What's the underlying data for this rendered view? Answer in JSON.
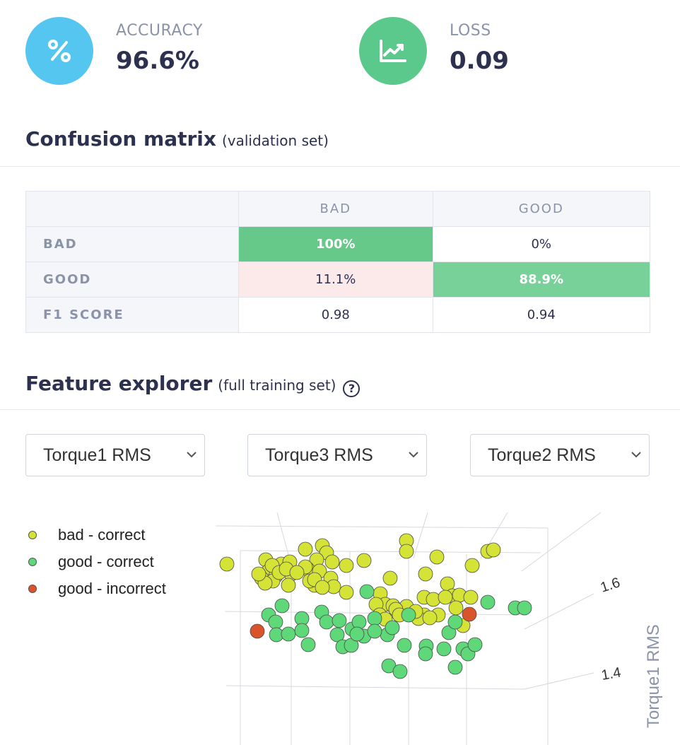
{
  "metrics": {
    "accuracy": {
      "label": "ACCURACY",
      "value": "96.6%",
      "icon": "percent-icon",
      "color": "#55c6ef"
    },
    "loss": {
      "label": "LOSS",
      "value": "0.09",
      "icon": "trend-chart-icon",
      "color": "#5cc98c"
    }
  },
  "confusion": {
    "title": "Confusion matrix",
    "subtitle": "(validation set)",
    "columns": [
      "BAD",
      "GOOD"
    ],
    "rows": [
      {
        "label": "BAD",
        "cells": [
          "100%",
          "0%"
        ]
      },
      {
        "label": "GOOD",
        "cells": [
          "11.1%",
          "88.9%"
        ]
      },
      {
        "label": "F1 SCORE",
        "cells": [
          "0.98",
          "0.94"
        ]
      }
    ],
    "colors": {
      "correct": "#66c98a",
      "correct_light": "#79d19a",
      "error": "#fceaea"
    }
  },
  "explorer": {
    "title": "Feature explorer",
    "subtitle": "(full training set)",
    "help_icon": "question-circle-icon",
    "selects": [
      "Torque1 RMS",
      "Torque3 RMS",
      "Torque2 RMS"
    ],
    "legend": [
      {
        "label": "bad - correct",
        "color": "#d5e236"
      },
      {
        "label": "good - correct",
        "color": "#5fd87a"
      },
      {
        "label": "good - incorrect",
        "color": "#d9542a"
      }
    ]
  },
  "chart_data": {
    "type": "scatter",
    "projection": "3d",
    "zlabel": "Torque1 RMS",
    "z_ticks": [
      "1.6",
      "1.4"
    ],
    "series": [
      {
        "name": "bad - correct",
        "color": "#d5e236",
        "points": [
          [
            321,
            798
          ],
          [
            376,
            792
          ],
          [
            380,
            808
          ],
          [
            370,
            818
          ],
          [
            390,
            815
          ],
          [
            398,
            798
          ],
          [
            410,
            795
          ],
          [
            412,
            812
          ],
          [
            432,
            777
          ],
          [
            456,
            772
          ],
          [
            462,
            782
          ],
          [
            448,
            792
          ],
          [
            435,
            805
          ],
          [
            452,
            808
          ],
          [
            470,
            795
          ],
          [
            490,
            800
          ],
          [
            515,
            793
          ],
          [
            575,
            765
          ],
          [
            575,
            780
          ],
          [
            618,
            788
          ],
          [
            602,
            812
          ],
          [
            600,
            845
          ],
          [
            613,
            848
          ],
          [
            633,
            826
          ],
          [
            640,
            843
          ],
          [
            650,
            842
          ],
          [
            668,
            800
          ],
          [
            690,
            780
          ],
          [
            698,
            778
          ],
          [
            552,
            818
          ],
          [
            538,
            840
          ],
          [
            545,
            855
          ],
          [
            556,
            857
          ],
          [
            575,
            858
          ],
          [
            560,
            862
          ],
          [
            600,
            870
          ],
          [
            592,
            875
          ],
          [
            565,
            870
          ],
          [
            588,
            865
          ],
          [
            532,
            855
          ],
          [
            537,
            870
          ],
          [
            545,
            876
          ],
          [
            468,
            818
          ],
          [
            472,
            830
          ],
          [
            445,
            828
          ],
          [
            438,
            822
          ],
          [
            432,
            802
          ],
          [
            408,
            828
          ],
          [
            386,
            822
          ],
          [
            375,
            825
          ],
          [
            366,
            812
          ],
          [
            385,
            800
          ],
          [
            395,
            810
          ],
          [
            405,
            805
          ],
          [
            420,
            810
          ],
          [
            445,
            820
          ],
          [
            456,
            831
          ],
          [
            490,
            838
          ],
          [
            655,
            885
          ],
          [
            645,
            860
          ],
          [
            666,
            845
          ],
          [
            630,
            845
          ],
          [
            620,
            870
          ],
          [
            608,
            874
          ]
        ]
      },
      {
        "name": "good - correct",
        "color": "#5fd87a",
        "points": [
          [
            399,
            857
          ],
          [
            380,
            870
          ],
          [
            390,
            880
          ],
          [
            391,
            898
          ],
          [
            408,
            897
          ],
          [
            427,
            875
          ],
          [
            427,
            892
          ],
          [
            436,
            912
          ],
          [
            455,
            866
          ],
          [
            462,
            880
          ],
          [
            480,
            878
          ],
          [
            477,
            898
          ],
          [
            485,
            915
          ],
          [
            497,
            913
          ],
          [
            498,
            890
          ],
          [
            508,
            880
          ],
          [
            515,
            900
          ],
          [
            505,
            897
          ],
          [
            519,
            837
          ],
          [
            530,
            875
          ],
          [
            548,
            898
          ],
          [
            530,
            893
          ],
          [
            555,
            888
          ],
          [
            572,
            913
          ],
          [
            578,
            870
          ],
          [
            603,
            914
          ],
          [
            602,
            925
          ],
          [
            628,
            918
          ],
          [
            635,
            895
          ],
          [
            644,
            880
          ],
          [
            655,
            918
          ],
          [
            662,
            925
          ],
          [
            672,
            912
          ],
          [
            644,
            944
          ],
          [
            550,
            942
          ],
          [
            566,
            950
          ],
          [
            690,
            852
          ],
          [
            729,
            860
          ],
          [
            742,
            860
          ]
        ]
      },
      {
        "name": "good - incorrect",
        "color": "#d9542a",
        "points": [
          [
            364,
            893
          ],
          [
            664,
            869
          ]
        ]
      }
    ]
  }
}
